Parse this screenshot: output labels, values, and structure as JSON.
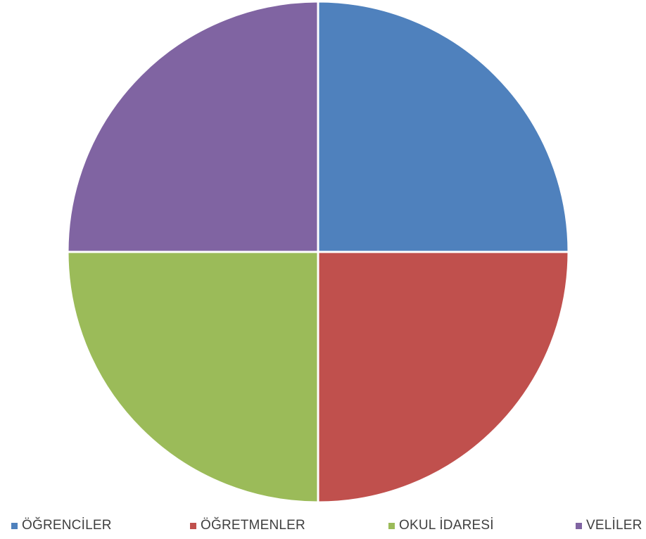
{
  "chart_data": {
    "type": "pie",
    "title": "",
    "categories": [
      "ÖĞRENCİLER",
      "ÖĞRETMENLER",
      "OKUL İDARESİ",
      "VELİLER"
    ],
    "values": [
      25,
      25,
      25,
      25
    ],
    "colors": [
      "#4f81bd",
      "#c0504d",
      "#9bbb59",
      "#8064a2"
    ],
    "start_angle_deg": 0,
    "direction": "clockwise",
    "legend_position": "bottom",
    "legend": [
      "ÖĞRENCİLER",
      "ÖĞRETMENLER",
      "OKUL İDARESİ",
      "VELİLER"
    ]
  }
}
